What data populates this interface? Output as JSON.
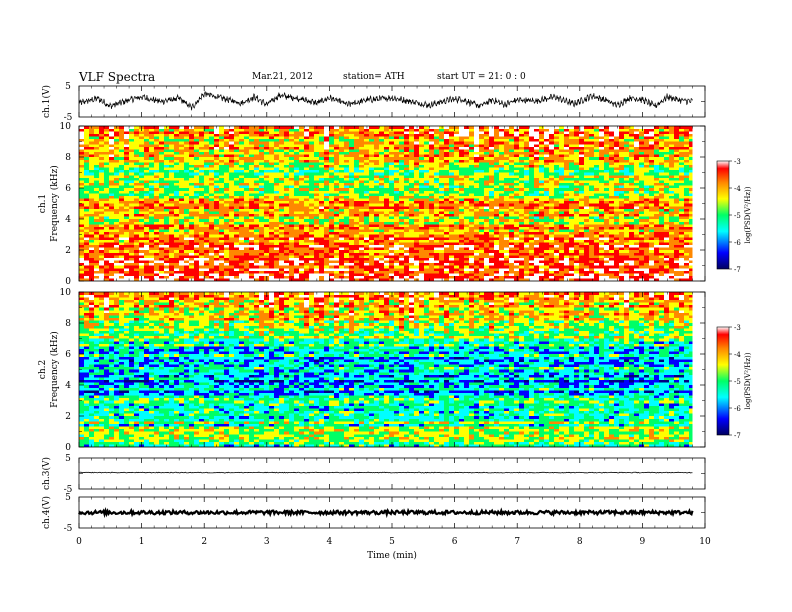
{
  "header": {
    "title": "VLF  Spectra",
    "date": "Mar.21, 2012",
    "station": "station= ATH",
    "start": "start  UT  =    21: 0  : 0"
  },
  "chart_data": [
    {
      "type": "line",
      "panel": "ch1",
      "ylabel": "ch.1(V)",
      "ylim": [
        -5,
        5
      ],
      "yticks": [
        "5",
        "-5"
      ],
      "xlim": [
        0,
        10
      ],
      "x_end": 9.8,
      "trend_x": [
        0,
        0.3,
        0.5,
        0.8,
        1.0,
        1.3,
        1.6,
        1.8,
        2.0,
        2.3,
        2.6,
        2.8,
        3.0,
        3.2,
        3.5,
        3.8,
        4.0,
        4.3,
        4.6,
        5.0,
        5.3,
        5.6,
        5.9,
        6.1,
        6.4,
        6.6,
        6.8,
        7.0,
        7.3,
        7.6,
        7.9,
        8.2,
        8.4,
        8.6,
        8.8,
        9.0,
        9.2,
        9.4,
        9.6,
        9.8
      ],
      "trend_y": [
        -0.5,
        1.0,
        -1.5,
        0.5,
        1.5,
        0.0,
        1.0,
        -2.0,
        2.5,
        1.0,
        -0.5,
        1.5,
        -1.0,
        2.0,
        1.0,
        -0.5,
        1.2,
        -1.0,
        0.5,
        1.2,
        0.0,
        -1.2,
        0.5,
        0.8,
        -1.5,
        0.5,
        -1.0,
        0.5,
        0.2,
        1.5,
        -0.8,
        1.8,
        0.5,
        -1.2,
        1.2,
        0.6,
        -1.5,
        1.5,
        0.4,
        0.0
      ]
    },
    {
      "type": "heatmap",
      "panel": "ch1",
      "ylabel": "ch.1",
      "ylabel2": "Frequency (kHz)",
      "ylim": [
        0,
        10
      ],
      "yticks": [
        "0",
        "2",
        "4",
        "6",
        "8",
        "10"
      ],
      "colorbar_label": "log(PSD(V²/Hz))",
      "colorbar_ticks": [
        "-3",
        "-4",
        "-5",
        "-6",
        "-7"
      ],
      "colorscale": [
        "#000080",
        "#0000ff",
        "#00ffff",
        "#00ff66",
        "#ffff00",
        "#ff8800",
        "#ff0000",
        "#ffffff"
      ],
      "freq_khz": [
        0,
        0.5,
        1.0,
        1.5,
        2.0,
        2.5,
        3.0,
        3.5,
        4.0,
        4.5,
        5.0,
        5.5,
        6.0,
        6.5,
        7.0,
        7.5,
        8.0,
        8.5,
        9.0,
        9.5,
        10.0
      ],
      "mean_log_psd": [
        -3.2,
        -3.8,
        -4.0,
        -4.1,
        -4.0,
        -4.1,
        -4.2,
        -4.5,
        -4.6,
        -4.4,
        -4.0,
        -4.7,
        -4.8,
        -4.9,
        -5.0,
        -4.9,
        -4.7,
        -4.6,
        -4.5,
        -4.3,
        -4.2
      ]
    },
    {
      "type": "heatmap",
      "panel": "ch2",
      "ylabel": "ch.2",
      "ylabel2": "Frequency (kHz)",
      "ylim": [
        0,
        10
      ],
      "yticks": [
        "0",
        "2",
        "4",
        "6",
        "8",
        "10"
      ],
      "colorbar_label": "log(PSD(V²/Hz))",
      "colorbar_ticks": [
        "-3",
        "-4",
        "-5",
        "-6",
        "-7"
      ],
      "colorscale": [
        "#000080",
        "#0000ff",
        "#00ffff",
        "#00ff66",
        "#ffff00",
        "#ff8800",
        "#ff0000",
        "#ffffff"
      ],
      "freq_khz": [
        0,
        0.5,
        1.0,
        1.5,
        2.0,
        2.5,
        3.0,
        3.5,
        4.0,
        4.5,
        5.0,
        5.5,
        6.0,
        6.5,
        7.0,
        7.5,
        8.0,
        8.5,
        9.0,
        9.5,
        10.0
      ],
      "mean_log_psd": [
        -5.8,
        -4.6,
        -5.0,
        -5.2,
        -5.3,
        -5.3,
        -5.4,
        -5.9,
        -5.8,
        -6.0,
        -5.7,
        -6.0,
        -5.6,
        -5.4,
        -5.3,
        -5.0,
        -4.8,
        -4.7,
        -4.6,
        -4.5,
        -4.4
      ]
    },
    {
      "type": "line",
      "panel": "ch3",
      "ylabel": "ch.3(V)",
      "ylim": [
        -5,
        5
      ],
      "yticks": [
        "5",
        "-5"
      ],
      "xlim": [
        0,
        10
      ],
      "x_end": 9.8,
      "level": 0.3
    },
    {
      "type": "line",
      "panel": "ch4",
      "ylabel": "ch.4(V)",
      "ylim": [
        -5,
        5
      ],
      "yticks": [
        "5",
        "-5"
      ],
      "xlim": [
        0,
        10
      ],
      "x_end": 9.8,
      "level": 0.0,
      "xlabel": "Time  (min)",
      "xticks": [
        "0",
        "1",
        "2",
        "3",
        "4",
        "5",
        "6",
        "7",
        "8",
        "9",
        "10"
      ]
    }
  ]
}
